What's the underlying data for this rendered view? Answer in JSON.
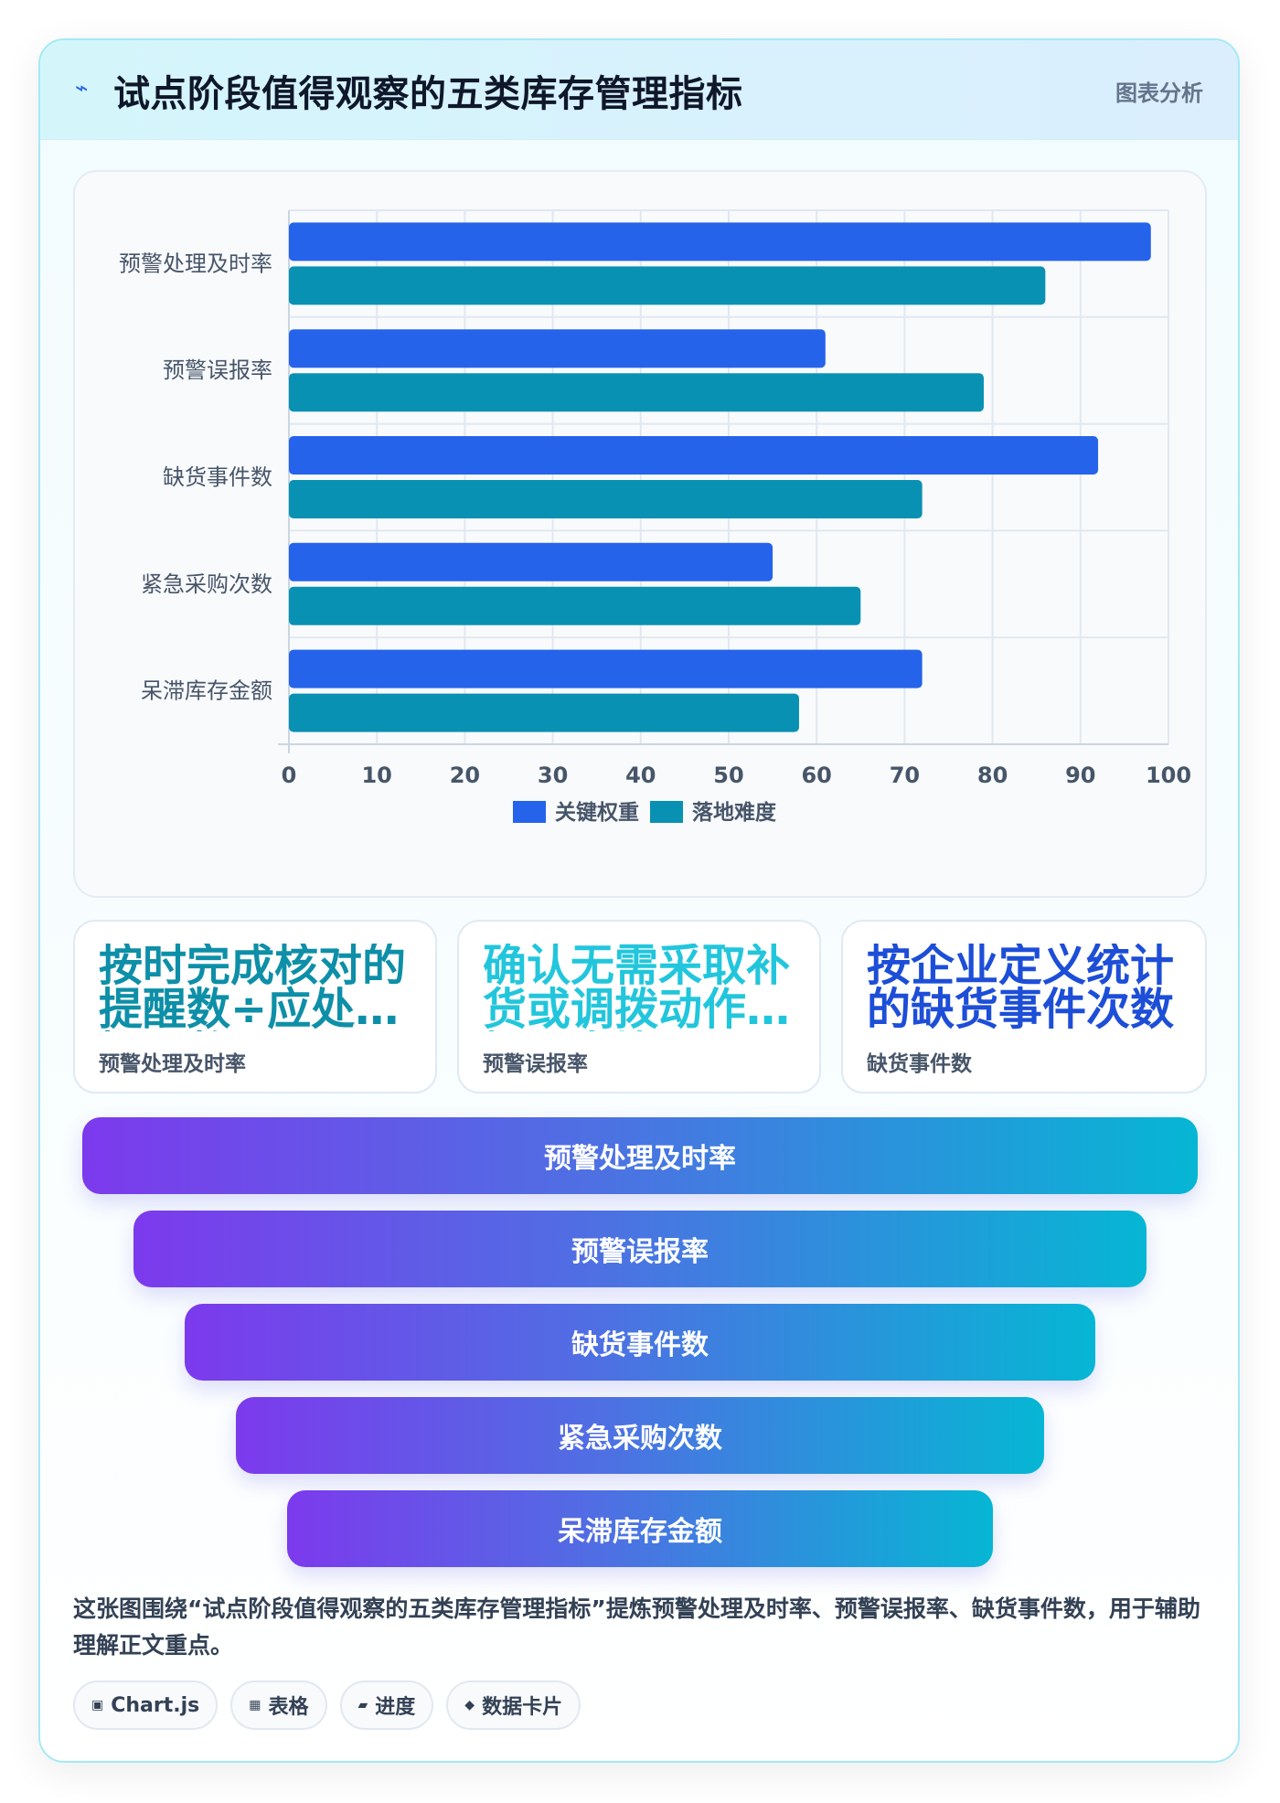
{
  "header": {
    "icon": "lightning-icon",
    "title": "试点阶段值得观察的五类库存管理指标",
    "tag": "图表分析"
  },
  "chart_data": {
    "type": "bar",
    "orientation": "horizontal",
    "categories": [
      "预警处理及时率",
      "预警误报率",
      "缺货事件数",
      "紧急采购次数",
      "呆滞库存金额"
    ],
    "series": [
      {
        "name": "关键权重",
        "values": [
          98,
          61,
          92,
          55,
          72
        ],
        "color": "#2563eb"
      },
      {
        "name": "落地难度",
        "values": [
          86,
          79,
          72,
          65,
          58
        ],
        "color": "#0891b2"
      }
    ],
    "xlim": [
      0,
      100
    ],
    "xticks": [
      0,
      10,
      20,
      30,
      40,
      50,
      60,
      70,
      80,
      90,
      100
    ],
    "grid": true,
    "legend_position": "bottom"
  },
  "stat_cards": [
    {
      "value": "按时完成核对的提醒数÷应处理提醒数",
      "label": "预警处理及时率",
      "color": "#0e8fa8"
    },
    {
      "value": "确认无需采取补货或调拨动作的提醒占比",
      "label": "预警误报率",
      "color": "#22c6dc"
    },
    {
      "value": "按企业定义统计的缺货事件次数",
      "label": "缺货事件数",
      "color": "#1d4ed8"
    }
  ],
  "funnel": [
    "预警处理及时率",
    "预警误报率",
    "缺货事件数",
    "紧急采购次数",
    "呆滞库存金额"
  ],
  "caption": "这张图围绕“试点阶段值得观察的五类库存管理指标”提炼预警处理及时率、预警误报率、缺货事件数，用于辅助理解正文重点。",
  "tags": [
    {
      "icon": "chart-icon",
      "label": "Chart.js"
    },
    {
      "icon": "table-icon",
      "label": "表格"
    },
    {
      "icon": "progress-icon",
      "label": "进度"
    },
    {
      "icon": "diamond-icon",
      "label": "数据卡片"
    }
  ]
}
